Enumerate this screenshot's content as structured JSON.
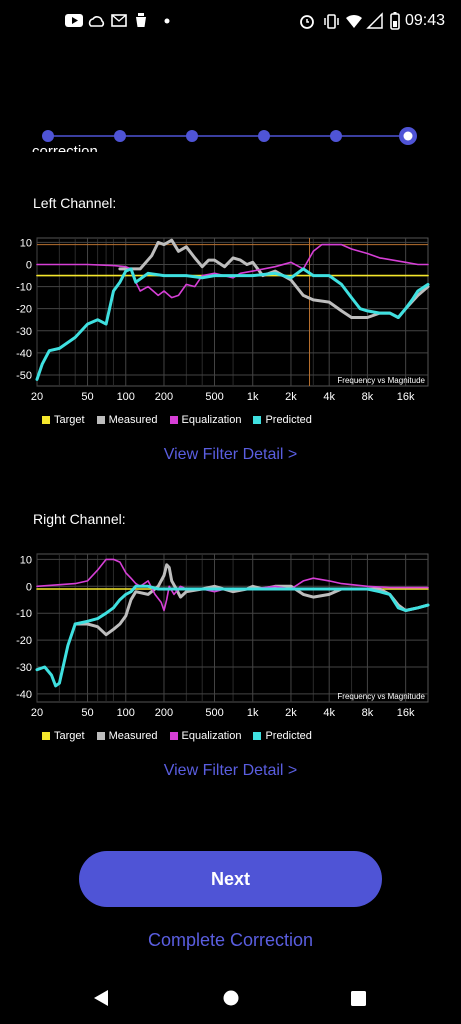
{
  "status": {
    "time": "09:43"
  },
  "stepper": {
    "steps": 6,
    "current": 6
  },
  "intro_clipped": "correction.",
  "left": {
    "label": "Left Channel:",
    "chart_title": "Frequency vs Magnitude",
    "link": "View Filter Detail >"
  },
  "right": {
    "label": "Right Channel:",
    "chart_title": "Frequency vs Magnitude",
    "link": "View Filter Detail >"
  },
  "legend": {
    "target": "Target",
    "measured": "Measured",
    "equalization": "Equalization",
    "predicted": "Predicted"
  },
  "colors": {
    "target": "#f5e72c",
    "measured": "#bdbdbd",
    "equalization": "#d63fd6",
    "predicted": "#3fe0e0",
    "accent": "#4f54d6",
    "link": "#5a5ee0"
  },
  "buttons": {
    "next": "Next",
    "complete": "Complete Correction"
  },
  "chart_data": [
    {
      "type": "line",
      "title": "Frequency vs Magnitude",
      "x_ticks": [
        "20",
        "50",
        "100",
        "200",
        "500",
        "1k",
        "2k",
        "4k",
        "8k",
        "16k"
      ],
      "x_tick_values": [
        20,
        50,
        100,
        200,
        500,
        1000,
        2000,
        4000,
        8000,
        16000
      ],
      "x_scale": "log",
      "xlim": [
        20,
        24000
      ],
      "y_ticks": [
        10,
        0,
        -10,
        -20,
        -30,
        -40,
        -50
      ],
      "ylim": [
        -55,
        12
      ],
      "series": [
        {
          "name": "Target",
          "x": [
            20,
            24000
          ],
          "y": [
            -5,
            -5
          ]
        },
        {
          "name": "Measured",
          "x": [
            90,
            100,
            130,
            160,
            180,
            200,
            230,
            260,
            300,
            350,
            400,
            450,
            500,
            600,
            700,
            800,
            900,
            1000,
            1200,
            1500,
            2000,
            2500,
            3000,
            4000,
            5000,
            6000,
            7000,
            8000,
            10000,
            12000,
            14000,
            16000,
            20000,
            24000
          ],
          "y": [
            -2,
            -2,
            -2,
            4,
            10,
            9,
            11,
            6,
            8,
            3,
            -1,
            2,
            2,
            -1,
            3,
            2,
            0,
            1,
            -5,
            -3,
            -7,
            -14,
            -16,
            -17,
            -21,
            -24,
            -24,
            -24,
            -22,
            -22,
            -24,
            -20,
            -14,
            -10
          ]
        },
        {
          "name": "Equalization",
          "x": [
            20,
            50,
            80,
            100,
            110,
            120,
            130,
            150,
            180,
            200,
            230,
            260,
            300,
            350,
            400,
            500,
            700,
            800,
            1000,
            1500,
            2000,
            2500,
            3000,
            3500,
            4000,
            5000,
            6000,
            8000,
            10000,
            16000,
            20000,
            24000
          ],
          "y": [
            0,
            0,
            -0.5,
            -1,
            -2,
            -8,
            -12,
            -10,
            -14,
            -12,
            -15,
            -14,
            -9,
            -10,
            -5,
            -4,
            -6,
            -4,
            -3,
            -1,
            1,
            -2,
            6,
            9,
            9,
            9,
            7,
            5,
            3,
            1,
            0,
            0
          ]
        },
        {
          "name": "Predicted",
          "x": [
            20,
            22,
            25,
            30,
            40,
            50,
            60,
            70,
            80,
            90,
            100,
            110,
            120,
            150,
            200,
            300,
            400,
            500,
            700,
            1000,
            1500,
            2000,
            2500,
            3000,
            4000,
            5000,
            6000,
            7000,
            8000,
            10000,
            12000,
            14000,
            16000,
            18000,
            20000,
            24000
          ],
          "y": [
            -52,
            -45,
            -39,
            -38,
            -33,
            -27,
            -25,
            -27,
            -12,
            -8,
            -3,
            -2,
            -8,
            -4,
            -5,
            -5,
            -6,
            -5,
            -5,
            -5,
            -4,
            -6,
            -2,
            -5,
            -5,
            -9,
            -15,
            -20,
            -21,
            -22,
            -22,
            -24,
            -20,
            -16,
            -12,
            -9
          ]
        }
      ]
    },
    {
      "type": "line",
      "title": "Frequency vs Magnitude",
      "x_ticks": [
        "20",
        "50",
        "100",
        "200",
        "500",
        "1k",
        "2k",
        "4k",
        "8k",
        "16k"
      ],
      "x_tick_values": [
        20,
        50,
        100,
        200,
        500,
        1000,
        2000,
        4000,
        8000,
        16000
      ],
      "x_scale": "log",
      "xlim": [
        20,
        24000
      ],
      "y_ticks": [
        10,
        0,
        -10,
        -20,
        -30,
        -40
      ],
      "ylim": [
        -43,
        12
      ],
      "series": [
        {
          "name": "Target",
          "x": [
            20,
            24000
          ],
          "y": [
            -1,
            -1
          ]
        },
        {
          "name": "Measured",
          "x": [
            40,
            50,
            60,
            70,
            80,
            90,
            100,
            110,
            120,
            150,
            180,
            200,
            210,
            220,
            230,
            250,
            270,
            300,
            400,
            500,
            700,
            900,
            1000,
            1200,
            1500,
            2000,
            2500,
            3000,
            4000,
            5000,
            6000,
            7000,
            8000,
            10000,
            12000,
            14000,
            16000,
            20000,
            24000
          ],
          "y": [
            -14,
            -14,
            -15,
            -18,
            -16,
            -14,
            -11,
            -5,
            -2,
            -3,
            0,
            4,
            8,
            7,
            2,
            -1,
            -4,
            -2,
            -1,
            0,
            -2,
            -1,
            0,
            -1,
            0,
            0,
            -3,
            -4,
            -3,
            -1,
            -1,
            -1,
            -1,
            -1,
            -3,
            -7,
            -9,
            -8,
            -7
          ]
        },
        {
          "name": "Equalization",
          "x": [
            20,
            40,
            50,
            60,
            70,
            80,
            90,
            100,
            110,
            120,
            130,
            150,
            170,
            190,
            200,
            210,
            220,
            240,
            270,
            300,
            400,
            500,
            600,
            800,
            1000,
            1500,
            2000,
            2500,
            3000,
            4000,
            5000,
            8000,
            12000,
            16000,
            20000,
            24000
          ],
          "y": [
            0,
            1,
            2,
            6,
            10,
            10,
            9,
            5,
            3,
            1,
            0,
            2,
            -3,
            -6,
            -9,
            -5,
            0,
            -3,
            0,
            -1,
            -1,
            -2,
            -1,
            -1,
            -1,
            0,
            -1,
            2,
            3,
            2,
            1,
            0,
            -0.5,
            -0.5,
            -0.5,
            -0.5
          ]
        },
        {
          "name": "Predicted",
          "x": [
            20,
            23,
            26,
            28,
            30,
            35,
            40,
            50,
            60,
            70,
            80,
            90,
            100,
            110,
            120,
            150,
            180,
            200,
            250,
            300,
            400,
            500,
            700,
            900,
            1000,
            1500,
            2000,
            3000,
            4000,
            5000,
            6000,
            7000,
            8000,
            10000,
            12000,
            14000,
            16000,
            20000,
            24000
          ],
          "y": [
            -31,
            -30,
            -33,
            -37,
            -36,
            -22,
            -14,
            -13,
            -12,
            -10,
            -8,
            -5,
            -3,
            -2,
            0,
            0,
            -1,
            -1,
            -1,
            -1,
            -1,
            -1,
            -1,
            -1,
            -1,
            -1,
            -1,
            -1,
            -1,
            -1,
            -1,
            -1,
            -1,
            -2,
            -3,
            -8,
            -9,
            -8,
            -7
          ]
        }
      ]
    }
  ]
}
